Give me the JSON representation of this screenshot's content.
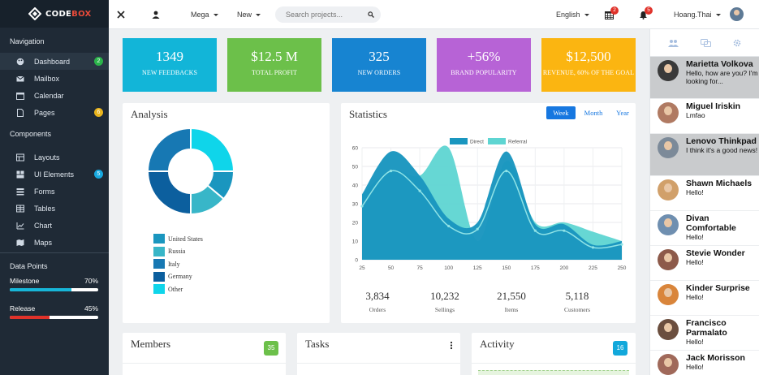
{
  "brand": {
    "name_a": "CODE",
    "name_b": "BOX"
  },
  "sidebar": {
    "sec_nav": "Navigation",
    "nav": [
      {
        "label": "Dashboard",
        "badge": "2",
        "icon": "palette-icon"
      },
      {
        "label": "Mailbox",
        "icon": "envelope-icon"
      },
      {
        "label": "Calendar",
        "icon": "calendar-icon"
      },
      {
        "label": "Pages",
        "badge": "6",
        "icon": "file-icon"
      }
    ],
    "sec_comp": "Components",
    "comp": [
      {
        "label": "Layouts",
        "icon": "layouts-icon"
      },
      {
        "label": "UI Elements",
        "badge": "5",
        "icon": "layers-icon"
      },
      {
        "label": "Forms",
        "icon": "forms-icon"
      },
      {
        "label": "Tables",
        "icon": "table-icon"
      },
      {
        "label": "Chart",
        "icon": "chart-icon"
      },
      {
        "label": "Maps",
        "icon": "map-icon"
      }
    ],
    "sec_dp": "Data Points",
    "milestone": {
      "label": "Milestone",
      "value": "70%",
      "fraction": 0.7,
      "color": "#17b6d8"
    },
    "release": {
      "label": "Release",
      "value": "45%",
      "fraction": 0.45,
      "color": "#e0322a"
    }
  },
  "topbar": {
    "mega": "Mega",
    "new": "New",
    "search_placeholder": "Search projects...",
    "language": "English",
    "calendar_count": "2",
    "bell_count": "5",
    "user": "Hoang.Thai"
  },
  "stats": [
    {
      "value": "1349",
      "label": "NEW FEEDBACKS",
      "color": "#12b5d8"
    },
    {
      "value": "$12.5 M",
      "label": "TOTAL PROFIT",
      "color": "#6cc04a"
    },
    {
      "value": "325",
      "label": "NEW ORDERS",
      "color": "#1784d1"
    },
    {
      "value": "+56%",
      "label": "BRAND POPULARITY",
      "color": "#b763d6"
    },
    {
      "value": "$12,500",
      "label": "REVENUE, 60% OF THE GOAL",
      "color": "#fbb511"
    }
  ],
  "analysis": {
    "title": "Analysis",
    "legend": [
      {
        "label": "United States",
        "color": "#1a96bf"
      },
      {
        "label": "Russia",
        "color": "#38b6c8"
      },
      {
        "label": "Italy",
        "color": "#1778b3"
      },
      {
        "label": "Germany",
        "color": "#0c5f9e"
      },
      {
        "label": "Other",
        "color": "#0fd5ea"
      }
    ]
  },
  "statistics": {
    "title": "Statistics",
    "tabs": [
      "Week",
      "Month",
      "Year"
    ],
    "summary": [
      {
        "value": "3,834",
        "label": "Orders"
      },
      {
        "value": "10,232",
        "label": "Sellings"
      },
      {
        "value": "21,550",
        "label": "Items"
      },
      {
        "value": "5,118",
        "label": "Customers"
      }
    ]
  },
  "chart_data": {
    "type": "area",
    "x": [
      25,
      50,
      75,
      100,
      125,
      150,
      175,
      200,
      225,
      250
    ],
    "xlim": [
      25,
      250
    ],
    "ylim": [
      0,
      60
    ],
    "yticks": [
      0,
      10,
      20,
      30,
      40,
      50,
      60
    ],
    "series": [
      {
        "name": "Direct",
        "color": "#1a96bf",
        "values": [
          35,
          58,
          45,
          22,
          20,
          58,
          19,
          19,
          8,
          10
        ]
      },
      {
        "name": "Referral",
        "color": "#5ed5d2",
        "values": [
          35,
          48,
          45,
          60,
          10,
          53,
          20,
          20,
          15,
          10
        ]
      }
    ],
    "legend_position": "top"
  },
  "members": {
    "title": "Members",
    "count": "35"
  },
  "tasks": {
    "title": "Tasks"
  },
  "activity": {
    "title": "Activity",
    "count": "16"
  },
  "chats": [
    {
      "name": "Marietta Volkova",
      "msg": "Hello, how are you? I'm looking for...",
      "highlight": true,
      "avatar": "#3a3a3a"
    },
    {
      "name": "Miguel Iriskin",
      "msg": "Lmfao",
      "highlight": false,
      "avatar": "#b07a62"
    },
    {
      "name": "Lenovo Thinkpad",
      "msg": "I think it's a good news!",
      "highlight": true,
      "avatar": "#7c8a99"
    },
    {
      "name": "Shawn Michaels",
      "msg": "Hello!",
      "highlight": false,
      "avatar": "#d1a06a"
    },
    {
      "name": "Divan Comfortable",
      "msg": "Hello!",
      "highlight": false,
      "avatar": "#6f8fb0"
    },
    {
      "name": "Stevie Wonder",
      "msg": "Hello!",
      "highlight": false,
      "avatar": "#8d5a4a"
    },
    {
      "name": "Kinder Surprise",
      "msg": "Hello!",
      "highlight": false,
      "avatar": "#d9853b"
    },
    {
      "name": "Francisco Parmalato",
      "msg": "Hello!",
      "highlight": false,
      "avatar": "#6b4e3e"
    },
    {
      "name": "Jack Morisson",
      "msg": "Hello!",
      "highlight": false,
      "avatar": "#a0695a"
    }
  ]
}
